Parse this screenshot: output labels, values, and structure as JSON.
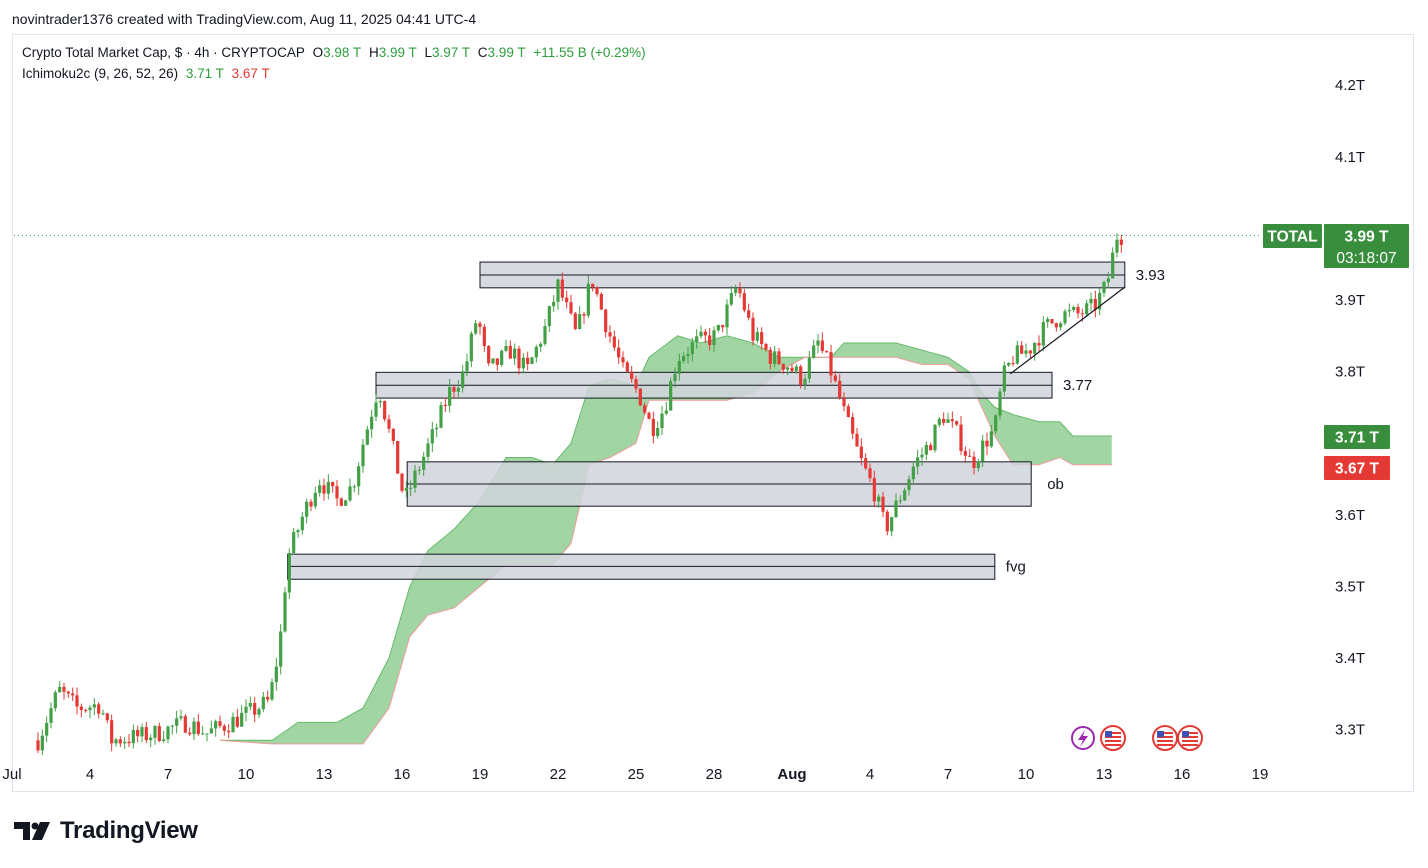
{
  "caption": "novintrader1376 created with TradingView.com, Aug 11, 2025 04:41 UTC-4",
  "symbol": {
    "title": "Crypto Total Market Cap, $ · 4h · CRYPTOCAP",
    "o_label": "O",
    "o_value": "3.98 T",
    "h_label": "H",
    "h_value": "3.99 T",
    "l_label": "L",
    "l_value": "3.97 T",
    "c_label": "C",
    "c_value": "3.99 T",
    "change": "+11.55 B (+0.29%)"
  },
  "indicator": {
    "name": "Ichimoku2c (9, 26, 52, 26)",
    "value1": "3.71 T",
    "value2": "3.67 T"
  },
  "badges": {
    "ticker": "TOTAL",
    "price": "3.99 T",
    "countdown": "03:18:07",
    "span_a": "3.71 T",
    "span_b": "3.67 T"
  },
  "branding": "TradingView",
  "colors": {
    "up": "#43a047",
    "down": "#e53935",
    "cloud_bull": "#81c784",
    "cloud_bear": "#2e7d32",
    "zone_fill": "#d1d4dc",
    "badge_green": "#388e3c",
    "badge_red": "#e53935"
  },
  "chart_data": {
    "type": "candlestick",
    "timeframe": "4h",
    "y_axis": {
      "labels": [
        "4.2T",
        "4.1T",
        "3.9T",
        "3.8T",
        "3.6T",
        "3.5T",
        "3.4T",
        "3.3T"
      ],
      "values": [
        4.2,
        4.1,
        3.9,
        3.8,
        3.6,
        3.5,
        3.4,
        3.3
      ],
      "range": [
        3.265,
        4.28
      ]
    },
    "x_axis": {
      "labels": [
        "Jul",
        "4",
        "7",
        "10",
        "13",
        "16",
        "19",
        "22",
        "25",
        "28",
        "Aug",
        "4",
        "7",
        "10",
        "13",
        "16",
        "19"
      ]
    },
    "last_price": 3.99,
    "zones": [
      {
        "label": "3.93",
        "top": 3.953,
        "bottom": 3.917,
        "mid": 3.935,
        "start_day": 18,
        "end_day": 42.8
      },
      {
        "label": "3.77",
        "top": 3.799,
        "bottom": 3.763,
        "mid": 3.781,
        "start_day": 14,
        "end_day": 40.0
      },
      {
        "label": "ob",
        "top": 3.674,
        "bottom": 3.612,
        "mid": 3.643,
        "start_day": 15.2,
        "end_day": 39.2
      },
      {
        "label": "fvg",
        "top": 3.545,
        "bottom": 3.51,
        "mid": 3.528,
        "start_day": 10.6,
        "end_day": 37.8
      }
    ],
    "trendline": {
      "from": {
        "day": 38.4,
        "value": 3.797
      },
      "to": {
        "day": 42.8,
        "value": 3.918
      }
    },
    "path": [
      {
        "day": 1.0,
        "value": 3.285
      },
      {
        "day": 1.8,
        "value": 3.355
      },
      {
        "day": 2.5,
        "value": 3.33
      },
      {
        "day": 3.4,
        "value": 3.335
      },
      {
        "day": 3.8,
        "value": 3.285
      },
      {
        "day": 4.8,
        "value": 3.29
      },
      {
        "day": 5.6,
        "value": 3.295
      },
      {
        "day": 6.7,
        "value": 3.31
      },
      {
        "day": 7.5,
        "value": 3.295
      },
      {
        "day": 8.4,
        "value": 3.31
      },
      {
        "day": 9.2,
        "value": 3.325
      },
      {
        "day": 9.9,
        "value": 3.34
      },
      {
        "day": 10.3,
        "value": 3.42
      },
      {
        "day": 10.6,
        "value": 3.54
      },
      {
        "day": 11.2,
        "value": 3.6
      },
      {
        "day": 11.8,
        "value": 3.65
      },
      {
        "day": 12.5,
        "value": 3.62
      },
      {
        "day": 13.1,
        "value": 3.64
      },
      {
        "day": 13.5,
        "value": 3.7
      },
      {
        "day": 14.1,
        "value": 3.78
      },
      {
        "day": 14.6,
        "value": 3.7
      },
      {
        "day": 15.1,
        "value": 3.62
      },
      {
        "day": 15.7,
        "value": 3.67
      },
      {
        "day": 16.3,
        "value": 3.72
      },
      {
        "day": 16.8,
        "value": 3.77
      },
      {
        "day": 17.4,
        "value": 3.8
      },
      {
        "day": 17.9,
        "value": 3.88
      },
      {
        "day": 18.3,
        "value": 3.8
      },
      {
        "day": 19.2,
        "value": 3.83
      },
      {
        "day": 19.8,
        "value": 3.8
      },
      {
        "day": 20.5,
        "value": 3.86
      },
      {
        "day": 21.0,
        "value": 3.92
      },
      {
        "day": 21.7,
        "value": 3.85
      },
      {
        "day": 22.3,
        "value": 3.93
      },
      {
        "day": 22.9,
        "value": 3.86
      },
      {
        "day": 23.5,
        "value": 3.8
      },
      {
        "day": 24.1,
        "value": 3.77
      },
      {
        "day": 24.6,
        "value": 3.72
      },
      {
        "day": 25.1,
        "value": 3.75
      },
      {
        "day": 25.6,
        "value": 3.82
      },
      {
        "day": 26.3,
        "value": 3.84
      },
      {
        "day": 27.1,
        "value": 3.85
      },
      {
        "day": 27.9,
        "value": 3.92
      },
      {
        "day": 28.5,
        "value": 3.85
      },
      {
        "day": 29.2,
        "value": 3.82
      },
      {
        "day": 29.8,
        "value": 3.81
      },
      {
        "day": 30.4,
        "value": 3.79
      },
      {
        "day": 31.0,
        "value": 3.84
      },
      {
        "day": 31.5,
        "value": 3.8
      },
      {
        "day": 32.2,
        "value": 3.72
      },
      {
        "day": 32.7,
        "value": 3.67
      },
      {
        "day": 33.1,
        "value": 3.64
      },
      {
        "day": 33.6,
        "value": 3.58
      },
      {
        "day": 34.1,
        "value": 3.62
      },
      {
        "day": 34.7,
        "value": 3.67
      },
      {
        "day": 35.3,
        "value": 3.7
      },
      {
        "day": 35.8,
        "value": 3.74
      },
      {
        "day": 36.4,
        "value": 3.71
      },
      {
        "day": 36.9,
        "value": 3.67
      },
      {
        "day": 37.4,
        "value": 3.7
      },
      {
        "day": 37.8,
        "value": 3.72
      },
      {
        "day": 38.1,
        "value": 3.79
      },
      {
        "day": 38.5,
        "value": 3.82
      },
      {
        "day": 39.1,
        "value": 3.83
      },
      {
        "day": 39.7,
        "value": 3.86
      },
      {
        "day": 40.4,
        "value": 3.88
      },
      {
        "day": 41.0,
        "value": 3.88
      },
      {
        "day": 41.6,
        "value": 3.89
      },
      {
        "day": 42.1,
        "value": 3.92
      },
      {
        "day": 42.5,
        "value": 3.99
      },
      {
        "day": 42.8,
        "value": 3.99
      }
    ],
    "cloud_span_a": [
      {
        "day": 8.0,
        "value": 3.285
      },
      {
        "day": 10.0,
        "value": 3.285
      },
      {
        "day": 11.0,
        "value": 3.31
      },
      {
        "day": 12.5,
        "value": 3.31
      },
      {
        "day": 13.5,
        "value": 3.33
      },
      {
        "day": 14.5,
        "value": 3.4
      },
      {
        "day": 15.3,
        "value": 3.5
      },
      {
        "day": 16.0,
        "value": 3.55
      },
      {
        "day": 17.0,
        "value": 3.58
      },
      {
        "day": 18.0,
        "value": 3.62
      },
      {
        "day": 19.0,
        "value": 3.68
      },
      {
        "day": 20.0,
        "value": 3.68
      },
      {
        "day": 20.8,
        "value": 3.67
      },
      {
        "day": 21.5,
        "value": 3.7
      },
      {
        "day": 22.2,
        "value": 3.78
      },
      {
        "day": 23.0,
        "value": 3.79
      },
      {
        "day": 24.0,
        "value": 3.78
      },
      {
        "day": 24.5,
        "value": 3.82
      },
      {
        "day": 25.6,
        "value": 3.85
      },
      {
        "day": 26.5,
        "value": 3.84
      },
      {
        "day": 27.5,
        "value": 3.85
      },
      {
        "day": 28.5,
        "value": 3.84
      },
      {
        "day": 29.5,
        "value": 3.82
      },
      {
        "day": 30.5,
        "value": 3.82
      },
      {
        "day": 31.5,
        "value": 3.82
      },
      {
        "day": 32.0,
        "value": 3.84
      },
      {
        "day": 33.0,
        "value": 3.84
      },
      {
        "day": 34.0,
        "value": 3.84
      },
      {
        "day": 35.0,
        "value": 3.83
      },
      {
        "day": 36.0,
        "value": 3.82
      },
      {
        "day": 36.8,
        "value": 3.8
      },
      {
        "day": 37.3,
        "value": 3.77
      },
      {
        "day": 37.8,
        "value": 3.75
      },
      {
        "day": 38.5,
        "value": 3.74
      },
      {
        "day": 39.5,
        "value": 3.73
      },
      {
        "day": 40.3,
        "value": 3.73
      },
      {
        "day": 40.8,
        "value": 3.71
      },
      {
        "day": 41.5,
        "value": 3.71
      },
      {
        "day": 42.3,
        "value": 3.71
      }
    ],
    "cloud_span_b": [
      {
        "day": 8.0,
        "value": 3.285
      },
      {
        "day": 10.0,
        "value": 3.28
      },
      {
        "day": 11.0,
        "value": 3.28
      },
      {
        "day": 12.5,
        "value": 3.28
      },
      {
        "day": 13.5,
        "value": 3.28
      },
      {
        "day": 14.5,
        "value": 3.33
      },
      {
        "day": 15.3,
        "value": 3.43
      },
      {
        "day": 16.0,
        "value": 3.46
      },
      {
        "day": 17.0,
        "value": 3.47
      },
      {
        "day": 18.0,
        "value": 3.5
      },
      {
        "day": 19.0,
        "value": 3.53
      },
      {
        "day": 20.0,
        "value": 3.53
      },
      {
        "day": 20.8,
        "value": 3.53
      },
      {
        "day": 21.5,
        "value": 3.56
      },
      {
        "day": 22.2,
        "value": 3.67
      },
      {
        "day": 23.0,
        "value": 3.68
      },
      {
        "day": 24.0,
        "value": 3.7
      },
      {
        "day": 24.5,
        "value": 3.76
      },
      {
        "day": 25.6,
        "value": 3.76
      },
      {
        "day": 26.5,
        "value": 3.76
      },
      {
        "day": 27.5,
        "value": 3.76
      },
      {
        "day": 28.5,
        "value": 3.77
      },
      {
        "day": 29.5,
        "value": 3.8
      },
      {
        "day": 30.5,
        "value": 3.82
      },
      {
        "day": 31.5,
        "value": 3.82
      },
      {
        "day": 32.0,
        "value": 3.82
      },
      {
        "day": 33.0,
        "value": 3.82
      },
      {
        "day": 34.0,
        "value": 3.82
      },
      {
        "day": 35.0,
        "value": 3.81
      },
      {
        "day": 36.0,
        "value": 3.81
      },
      {
        "day": 36.8,
        "value": 3.79
      },
      {
        "day": 37.3,
        "value": 3.75
      },
      {
        "day": 37.8,
        "value": 3.71
      },
      {
        "day": 38.5,
        "value": 3.67
      },
      {
        "day": 39.5,
        "value": 3.67
      },
      {
        "day": 40.3,
        "value": 3.68
      },
      {
        "day": 40.8,
        "value": 3.67
      },
      {
        "day": 41.5,
        "value": 3.67
      },
      {
        "day": 42.3,
        "value": 3.67
      }
    ]
  }
}
